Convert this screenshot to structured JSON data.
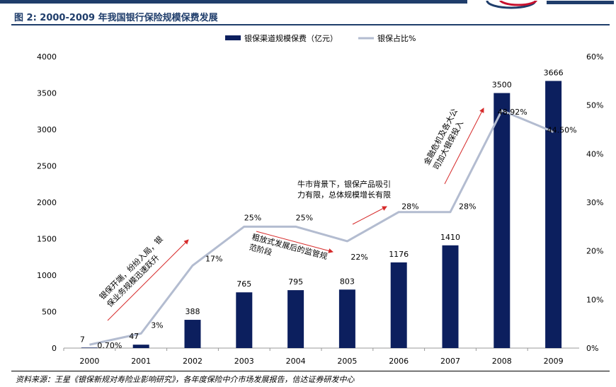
{
  "figure_title": "图 2:  2000-2009 年我国银行保险规模保费发展",
  "source_note": "资料来源：王星《银保新规对寿险业影响研究》，各年度保险中介市场发展报告，信达证券研发中心",
  "colors": {
    "bar": "#0c1f5e",
    "line": "#b3bcd0",
    "arrow": "#d62a2a",
    "brand": "#1f3d6b",
    "logo_red": "#c8102e"
  },
  "chart_data": {
    "type": "bar+line",
    "categories": [
      "2000",
      "2001",
      "2002",
      "2003",
      "2004",
      "2005",
      "2006",
      "2007",
      "2008",
      "2009"
    ],
    "series": [
      {
        "name": "银保渠道规模保费（亿元）",
        "type": "bar",
        "axis": "left",
        "values": [
          7,
          47,
          388,
          765,
          795,
          803,
          1176,
          1410,
          3500,
          3666
        ],
        "labels": [
          "7",
          "47",
          "388",
          "765",
          "795",
          "803",
          "1176",
          "1410",
          "3500",
          "3666"
        ]
      },
      {
        "name": "银保占比%",
        "type": "line",
        "axis": "right",
        "values": [
          0.7,
          3,
          17,
          25,
          25,
          22,
          28,
          28,
          48.92,
          44.5
        ],
        "labels": [
          "0.70%",
          "3%",
          "17%",
          "25%",
          "25%",
          "22%",
          "28%",
          "28%",
          "48.92%",
          "44.50%"
        ]
      }
    ],
    "y_left": {
      "min": 0,
      "max": 4000,
      "ticks": [
        "0",
        "500",
        "1000",
        "1500",
        "2000",
        "2500",
        "3000",
        "3500",
        "4000"
      ]
    },
    "y_right": {
      "min": 0,
      "max": 60,
      "ticks": [
        "0%",
        "10%",
        "20%",
        "30%",
        "40%",
        "50%",
        "60%"
      ]
    },
    "legend_position": "top-center",
    "grid": false,
    "annotations": [
      {
        "text": "银保开端，纷纷入局，银保业务规模迅速跃升",
        "lines": [
          "银保开端，纷纷入局，银",
          "保业务规模迅速跃升"
        ]
      },
      {
        "text": "粗放式发展后的监管规范阶段",
        "lines": [
          "粗放式发展后的监管规",
          "范阶段"
        ]
      },
      {
        "text": "牛市背景下，银保产品吸引力有限，总体规模增长有限",
        "lines": [
          "牛市背景下，银保产品吸引",
          "力有限，总体规模增长有限"
        ]
      },
      {
        "text": "金融危机及各大公司加大银保投入",
        "lines": [
          "金融危机及各大公",
          "司加大银保投入"
        ]
      }
    ]
  }
}
